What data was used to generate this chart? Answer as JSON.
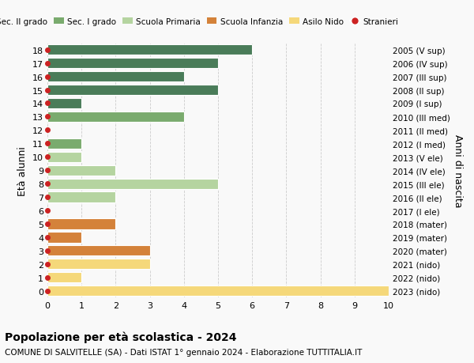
{
  "ages": [
    18,
    17,
    16,
    15,
    14,
    13,
    12,
    11,
    10,
    9,
    8,
    7,
    6,
    5,
    4,
    3,
    2,
    1,
    0
  ],
  "right_labels_by_age": {
    "18": "2005 (V sup)",
    "17": "2006 (IV sup)",
    "16": "2007 (III sup)",
    "15": "2008 (II sup)",
    "14": "2009 (I sup)",
    "13": "2010 (III med)",
    "12": "2011 (II med)",
    "11": "2012 (I med)",
    "10": "2013 (V ele)",
    "9": "2014 (IV ele)",
    "8": "2015 (III ele)",
    "7": "2016 (II ele)",
    "6": "2017 (I ele)",
    "5": "2018 (mater)",
    "4": "2019 (mater)",
    "3": "2020 (mater)",
    "2": "2021 (nido)",
    "1": "2022 (nido)",
    "0": "2023 (nido)"
  },
  "values_by_age": {
    "18": 6,
    "17": 5,
    "16": 4,
    "15": 5,
    "14": 1,
    "13": 4,
    "12": 0,
    "11": 1,
    "10": 1,
    "9": 2,
    "8": 5,
    "7": 2,
    "6": 0,
    "5": 2,
    "4": 1,
    "3": 3,
    "2": 3,
    "1": 1,
    "0": 10
  },
  "colors_by_age": {
    "18": "#4a7c59",
    "17": "#4a7c59",
    "16": "#4a7c59",
    "15": "#4a7c59",
    "14": "#4a7c59",
    "13": "#7aab6e",
    "12": "#7aab6e",
    "11": "#7aab6e",
    "10": "#b5d4a0",
    "9": "#b5d4a0",
    "8": "#b5d4a0",
    "7": "#b5d4a0",
    "6": "#b5d4a0",
    "5": "#d4823a",
    "4": "#d4823a",
    "3": "#d4823a",
    "2": "#f5d87a",
    "1": "#f5d87a",
    "0": "#f5d87a"
  },
  "dot_color": "#cc2222",
  "xlim": [
    0,
    10
  ],
  "ylim": [
    -0.5,
    18.5
  ],
  "ylabel": "Età alunni",
  "right_ylabel": "Anni di nascita",
  "title": "Popolazione per età scolastica - 2024",
  "subtitle": "COMUNE DI SALVITELLE (SA) - Dati ISTAT 1° gennaio 2024 - Elaborazione TUTTITALIA.IT",
  "legend_labels": [
    "Sec. II grado",
    "Sec. I grado",
    "Scuola Primaria",
    "Scuola Infanzia",
    "Asilo Nido",
    "Stranieri"
  ],
  "legend_colors": [
    "#4a7c59",
    "#7aab6e",
    "#b5d4a0",
    "#d4823a",
    "#f5d87a",
    "#cc2222"
  ],
  "bg_color": "#f9f9f9",
  "bar_height": 0.78,
  "xticks": [
    0,
    1,
    2,
    3,
    4,
    5,
    6,
    7,
    8,
    9,
    10
  ],
  "yticks": [
    0,
    1,
    2,
    3,
    4,
    5,
    6,
    7,
    8,
    9,
    10,
    11,
    12,
    13,
    14,
    15,
    16,
    17,
    18
  ]
}
